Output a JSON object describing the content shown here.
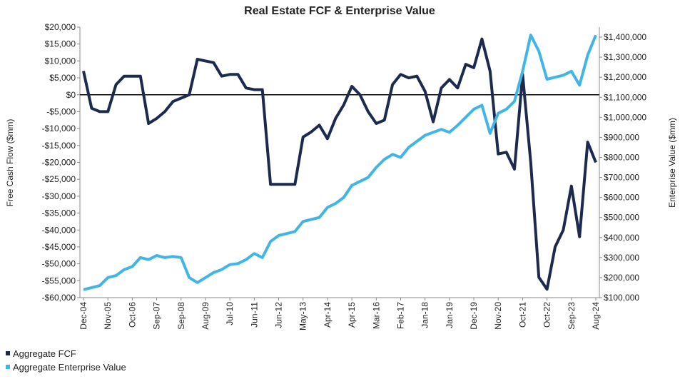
{
  "chart_data": {
    "type": "line",
    "title": "Real Estate FCF & Enterprise Value",
    "y_label": "Free Cash Flow ($mm)",
    "y2_label": "Enterprise Value ($mm)",
    "categories": [
      "Dec-04",
      null,
      null,
      "Nov-05",
      null,
      null,
      "Oct-06",
      null,
      null,
      "Sep-07",
      null,
      null,
      "Sep-08",
      null,
      null,
      "Aug-09",
      null,
      null,
      "Jul-10",
      null,
      null,
      "Jun-11",
      null,
      null,
      "Jun-12",
      null,
      null,
      "May-13",
      null,
      null,
      "Apr-14",
      null,
      null,
      "Apr-15",
      null,
      null,
      "Mar-16",
      null,
      null,
      "Feb-17",
      null,
      null,
      "Jan-18",
      null,
      null,
      "Jan-19",
      null,
      null,
      "Dec-19",
      null,
      null,
      "Nov-20",
      null,
      null,
      "Oct-21",
      null,
      null,
      "Oct-22",
      null,
      null,
      "Sep-23",
      null,
      null,
      "Aug-24"
    ],
    "series": [
      {
        "name": "Aggregate FCF",
        "color": "#1b2a4e",
        "axis": "y",
        "values": [
          7000,
          -4000,
          -5000,
          -5000,
          3000,
          5500,
          5500,
          5500,
          -8500,
          -7000,
          -5000,
          -2000,
          -1000,
          0,
          10500,
          10000,
          9500,
          5500,
          6000,
          6000,
          2000,
          1500,
          1500,
          -26500,
          -26500,
          -26500,
          -26500,
          -12500,
          -11000,
          -9000,
          -13000,
          -7000,
          -3000,
          2500,
          0,
          -5000,
          -8500,
          -7500,
          3000,
          6000,
          5000,
          5500,
          1000,
          -8000,
          2000,
          4500,
          2000,
          9000,
          8000,
          16500,
          7000,
          -17500,
          -17000,
          -22000,
          6000,
          -20000,
          -54000,
          -57500,
          -45000,
          -40000,
          -27000,
          -42000,
          -14000,
          -20000
        ]
      },
      {
        "name": "Aggregate Enterprise Value",
        "color": "#41b6e6",
        "axis": "y2",
        "values": [
          140000,
          150000,
          160000,
          200000,
          210000,
          240000,
          255000,
          300000,
          290000,
          310000,
          300000,
          305000,
          300000,
          200000,
          175000,
          200000,
          225000,
          240000,
          265000,
          270000,
          290000,
          320000,
          300000,
          380000,
          410000,
          420000,
          430000,
          480000,
          490000,
          500000,
          550000,
          570000,
          600000,
          660000,
          680000,
          700000,
          750000,
          790000,
          815000,
          800000,
          850000,
          880000,
          910000,
          925000,
          940000,
          925000,
          960000,
          1000000,
          1040000,
          1060000,
          920000,
          1020000,
          1040000,
          1080000,
          1230000,
          1410000,
          1330000,
          1190000,
          1200000,
          1210000,
          1230000,
          1160000,
          1310000,
          1410000
        ]
      }
    ],
    "ylim": [
      -60000,
      20000
    ],
    "yticks": [
      {
        "value": -60000,
        "label": "-$60,000"
      },
      {
        "value": -55000,
        "label": "-$55,000"
      },
      {
        "value": -50000,
        "label": "-$50,000"
      },
      {
        "value": -45000,
        "label": "-$45,000"
      },
      {
        "value": -40000,
        "label": "-$40,000"
      },
      {
        "value": -35000,
        "label": "-$35,000"
      },
      {
        "value": -30000,
        "label": "-$30,000"
      },
      {
        "value": -25000,
        "label": "-$25,000"
      },
      {
        "value": -20000,
        "label": "-$20,000"
      },
      {
        "value": -15000,
        "label": "-$15,000"
      },
      {
        "value": -10000,
        "label": "-$10,000"
      },
      {
        "value": -5000,
        "label": "-$5,000"
      },
      {
        "value": 0,
        "label": "$0"
      },
      {
        "value": 5000,
        "label": "$5,000"
      },
      {
        "value": 10000,
        "label": "$10,000"
      },
      {
        "value": 15000,
        "label": "$15,000"
      },
      {
        "value": 20000,
        "label": "$20,000"
      }
    ],
    "y2lim": [
      100000,
      1450000
    ],
    "y2ticks": [
      {
        "value": 100000,
        "label": "$100,000"
      },
      {
        "value": 200000,
        "label": "$200,000"
      },
      {
        "value": 300000,
        "label": "$300,000"
      },
      {
        "value": 400000,
        "label": "$400,000"
      },
      {
        "value": 500000,
        "label": "$500,000"
      },
      {
        "value": 600000,
        "label": "$600,000"
      },
      {
        "value": 700000,
        "label": "$700,000"
      },
      {
        "value": 800000,
        "label": "$800,000"
      },
      {
        "value": 900000,
        "label": "$900,000"
      },
      {
        "value": 1000000,
        "label": "$1,000,000"
      },
      {
        "value": 1100000,
        "label": "$1,100,000"
      },
      {
        "value": 1200000,
        "label": "$1,200,000"
      },
      {
        "value": 1300000,
        "label": "$1,300,000"
      },
      {
        "value": 1400000,
        "label": "$1,400,000"
      }
    ],
    "grid": false,
    "legend": "bottom-left"
  }
}
